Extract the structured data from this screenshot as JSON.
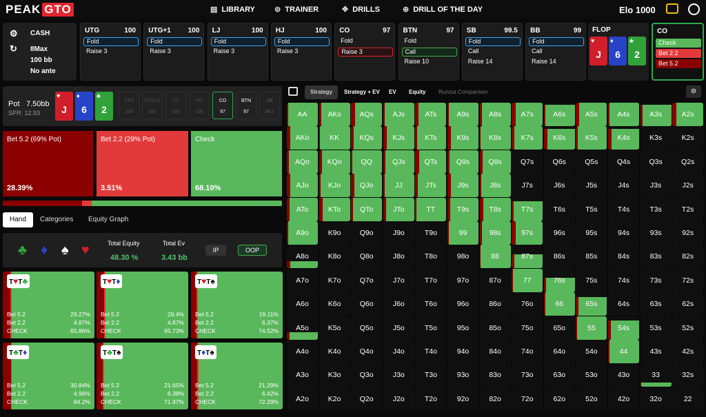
{
  "brand": {
    "logo_left": "PEAK",
    "logo_right": "GTO"
  },
  "nav": [
    {
      "label": "LIBRARY",
      "icon": "book-icon"
    },
    {
      "label": "TRAINER",
      "icon": "gamepad-icon"
    },
    {
      "label": "DRILLS",
      "icon": "crosshair-icon"
    },
    {
      "label": "DRILL OF THE DAY",
      "icon": "plus-circle-icon"
    }
  ],
  "elo": "Elo 1000",
  "game": {
    "type": "CASH",
    "format": "8Max",
    "stack": "100 bb",
    "ante": "No ante"
  },
  "positions": [
    {
      "name": "UTG",
      "stack": "100",
      "actions": [
        "Fold",
        "Raise 3"
      ],
      "sel": 0
    },
    {
      "name": "UTG+1",
      "stack": "100",
      "actions": [
        "Fold",
        "Raise 3"
      ],
      "sel": 0
    },
    {
      "name": "LJ",
      "stack": "100",
      "actions": [
        "Fold",
        "Raise 3"
      ],
      "sel": 0
    },
    {
      "name": "HJ",
      "stack": "100",
      "actions": [
        "Fold",
        "Raise 3"
      ],
      "sel": 0
    },
    {
      "name": "CO",
      "stack": "97",
      "actions": [
        "Fold",
        "Raise 3"
      ],
      "sel": 1
    },
    {
      "name": "BTN",
      "stack": "97",
      "actions": [
        "Fold",
        "Call",
        "Raise 10"
      ],
      "sel": 1
    },
    {
      "name": "SB",
      "stack": "99.5",
      "actions": [
        "Fold",
        "Call",
        "Raise 14"
      ],
      "sel": 0
    },
    {
      "name": "BB",
      "stack": "99",
      "actions": [
        "Fold",
        "Call",
        "Raise 14"
      ],
      "sel": 0
    }
  ],
  "flop": {
    "label": "FLOP",
    "cards": [
      {
        "rank": "J",
        "suit": "♥",
        "color": "#d01f2a"
      },
      {
        "rank": "6",
        "suit": "♦",
        "color": "#2743c8"
      },
      {
        "rank": "2",
        "suit": "♣",
        "color": "#2fa33a"
      }
    ]
  },
  "current": {
    "name": "CO",
    "actions": [
      "Check",
      "Bet 2.2",
      "Bet 5.2"
    ]
  },
  "pot": {
    "label": "Pot",
    "value": "7.50bb",
    "spr": "SPR: 12.93"
  },
  "mini_positions": [
    {
      "name": "UTG",
      "stack": "100"
    },
    {
      "name": "UTG+1",
      "stack": "100"
    },
    {
      "name": "LJ",
      "stack": "100"
    },
    {
      "name": "HJ",
      "stack": "100"
    },
    {
      "name": "CO",
      "stack": "97"
    },
    {
      "name": "BTN",
      "stack": "97"
    },
    {
      "name": "SB",
      "stack": "99.5"
    }
  ],
  "strategy": [
    {
      "label": "Bet 5.2 (69% Pot)",
      "pct": "28.39%",
      "color": "#8b0000"
    },
    {
      "label": "Bet 2.2 (29% Pot)",
      "pct": "3.51%",
      "color": "#e23a3a"
    },
    {
      "label": "Check",
      "pct": "68.10%",
      "color": "#59b85b"
    }
  ],
  "freq": [
    28.39,
    3.51,
    68.1
  ],
  "tabs": [
    "Hand",
    "Categories",
    "Equity Graph"
  ],
  "equity": {
    "total_equity_label": "Total Equity",
    "total_equity": "48.30 %",
    "total_ev_label": "Total Ev",
    "total_ev": "3.43 bb",
    "ip": "IP",
    "oop": "OOP"
  },
  "combos": [
    {
      "cards": [
        {
          "r": "T",
          "s": "♥",
          "c": "#d01f2a"
        },
        {
          "r": "T",
          "s": "♣",
          "c": "#2fa33a"
        }
      ],
      "b52": "29.27%",
      "b22": "4.87%",
      "chk": "65.86%",
      "v": [
        29.27,
        4.87
      ]
    },
    {
      "cards": [
        {
          "r": "T",
          "s": "♥",
          "c": "#d01f2a"
        },
        {
          "r": "T",
          "s": "♦",
          "c": "#2743c8"
        }
      ],
      "b52": "29.4%",
      "b22": "4.87%",
      "chk": "65.73%",
      "v": [
        29.4,
        4.87
      ]
    },
    {
      "cards": [
        {
          "r": "T",
          "s": "♥",
          "c": "#d01f2a"
        },
        {
          "r": "T",
          "s": "♠",
          "c": "#000"
        }
      ],
      "b52": "19.11%",
      "b22": "6.37%",
      "chk": "74.52%",
      "v": [
        19.11,
        6.37
      ]
    },
    {
      "cards": [
        {
          "r": "T",
          "s": "♣",
          "c": "#2fa33a"
        },
        {
          "r": "T",
          "s": "♦",
          "c": "#2743c8"
        }
      ],
      "b52": "30.84%",
      "b22": "4.96%",
      "chk": "64.2%",
      "v": [
        30.84,
        4.96
      ]
    },
    {
      "cards": [
        {
          "r": "T",
          "s": "♣",
          "c": "#2fa33a"
        },
        {
          "r": "T",
          "s": "♠",
          "c": "#000"
        }
      ],
      "b52": "21.65%",
      "b22": "6.38%",
      "chk": "71.97%",
      "v": [
        21.65,
        6.38
      ]
    },
    {
      "cards": [
        {
          "r": "T",
          "s": "♦",
          "c": "#2743c8"
        },
        {
          "r": "T",
          "s": "♠",
          "c": "#000"
        }
      ],
      "b52": "21.29%",
      "b22": "6.42%",
      "chk": "72.29%",
      "v": [
        21.29,
        6.42
      ]
    }
  ],
  "combo_row_labels": {
    "b52": "Bet 5.2",
    "b22": "Bet 2.2",
    "chk": "CHECK"
  },
  "right_tabs": [
    "Strategy",
    "Strategy + EV",
    "EV",
    "Equity",
    "Runout Comparison"
  ],
  "ranks": [
    "A",
    "K",
    "Q",
    "J",
    "T",
    "9",
    "8",
    "7",
    "6",
    "5",
    "4",
    "3",
    "2"
  ],
  "grid_fill": [
    [
      1,
      1,
      1,
      1,
      1,
      1,
      1,
      1,
      0.9,
      1,
      1,
      0.9,
      1
    ],
    [
      1,
      1,
      1,
      1,
      1,
      1,
      1,
      1,
      0.9,
      1,
      0.9,
      0,
      0
    ],
    [
      1,
      1,
      1,
      1,
      1,
      1,
      1,
      0,
      0,
      0,
      0,
      0,
      0
    ],
    [
      1,
      1,
      1,
      1,
      1,
      1,
      1,
      0,
      0,
      0,
      0,
      0,
      0
    ],
    [
      1,
      1,
      1,
      1,
      1,
      1,
      1,
      0.85,
      0,
      0,
      0,
      0,
      0
    ],
    [
      1,
      0,
      0,
      0,
      0,
      1,
      1,
      1,
      0,
      0,
      0,
      0,
      0
    ],
    [
      0.3,
      0,
      0,
      0,
      0,
      0,
      1,
      0.6,
      0,
      0,
      0,
      0,
      0
    ],
    [
      0,
      0,
      0,
      0,
      0,
      0,
      0,
      1,
      0.6,
      0,
      0,
      0,
      0
    ],
    [
      0,
      0,
      0,
      0,
      0,
      0,
      0,
      0,
      1,
      0.8,
      0,
      0,
      0
    ],
    [
      0.3,
      0,
      0,
      0,
      0,
      0,
      0,
      0,
      0,
      1,
      0.8,
      0,
      0
    ],
    [
      0,
      0,
      0,
      0,
      0,
      0,
      0,
      0,
      0,
      0,
      1,
      0,
      0
    ],
    [
      0,
      0,
      0,
      0,
      0,
      0,
      0,
      0,
      0,
      0,
      0,
      0.2,
      0
    ],
    [
      0,
      0,
      0,
      0,
      0,
      0,
      0,
      0,
      0,
      0,
      0,
      0,
      0
    ]
  ]
}
